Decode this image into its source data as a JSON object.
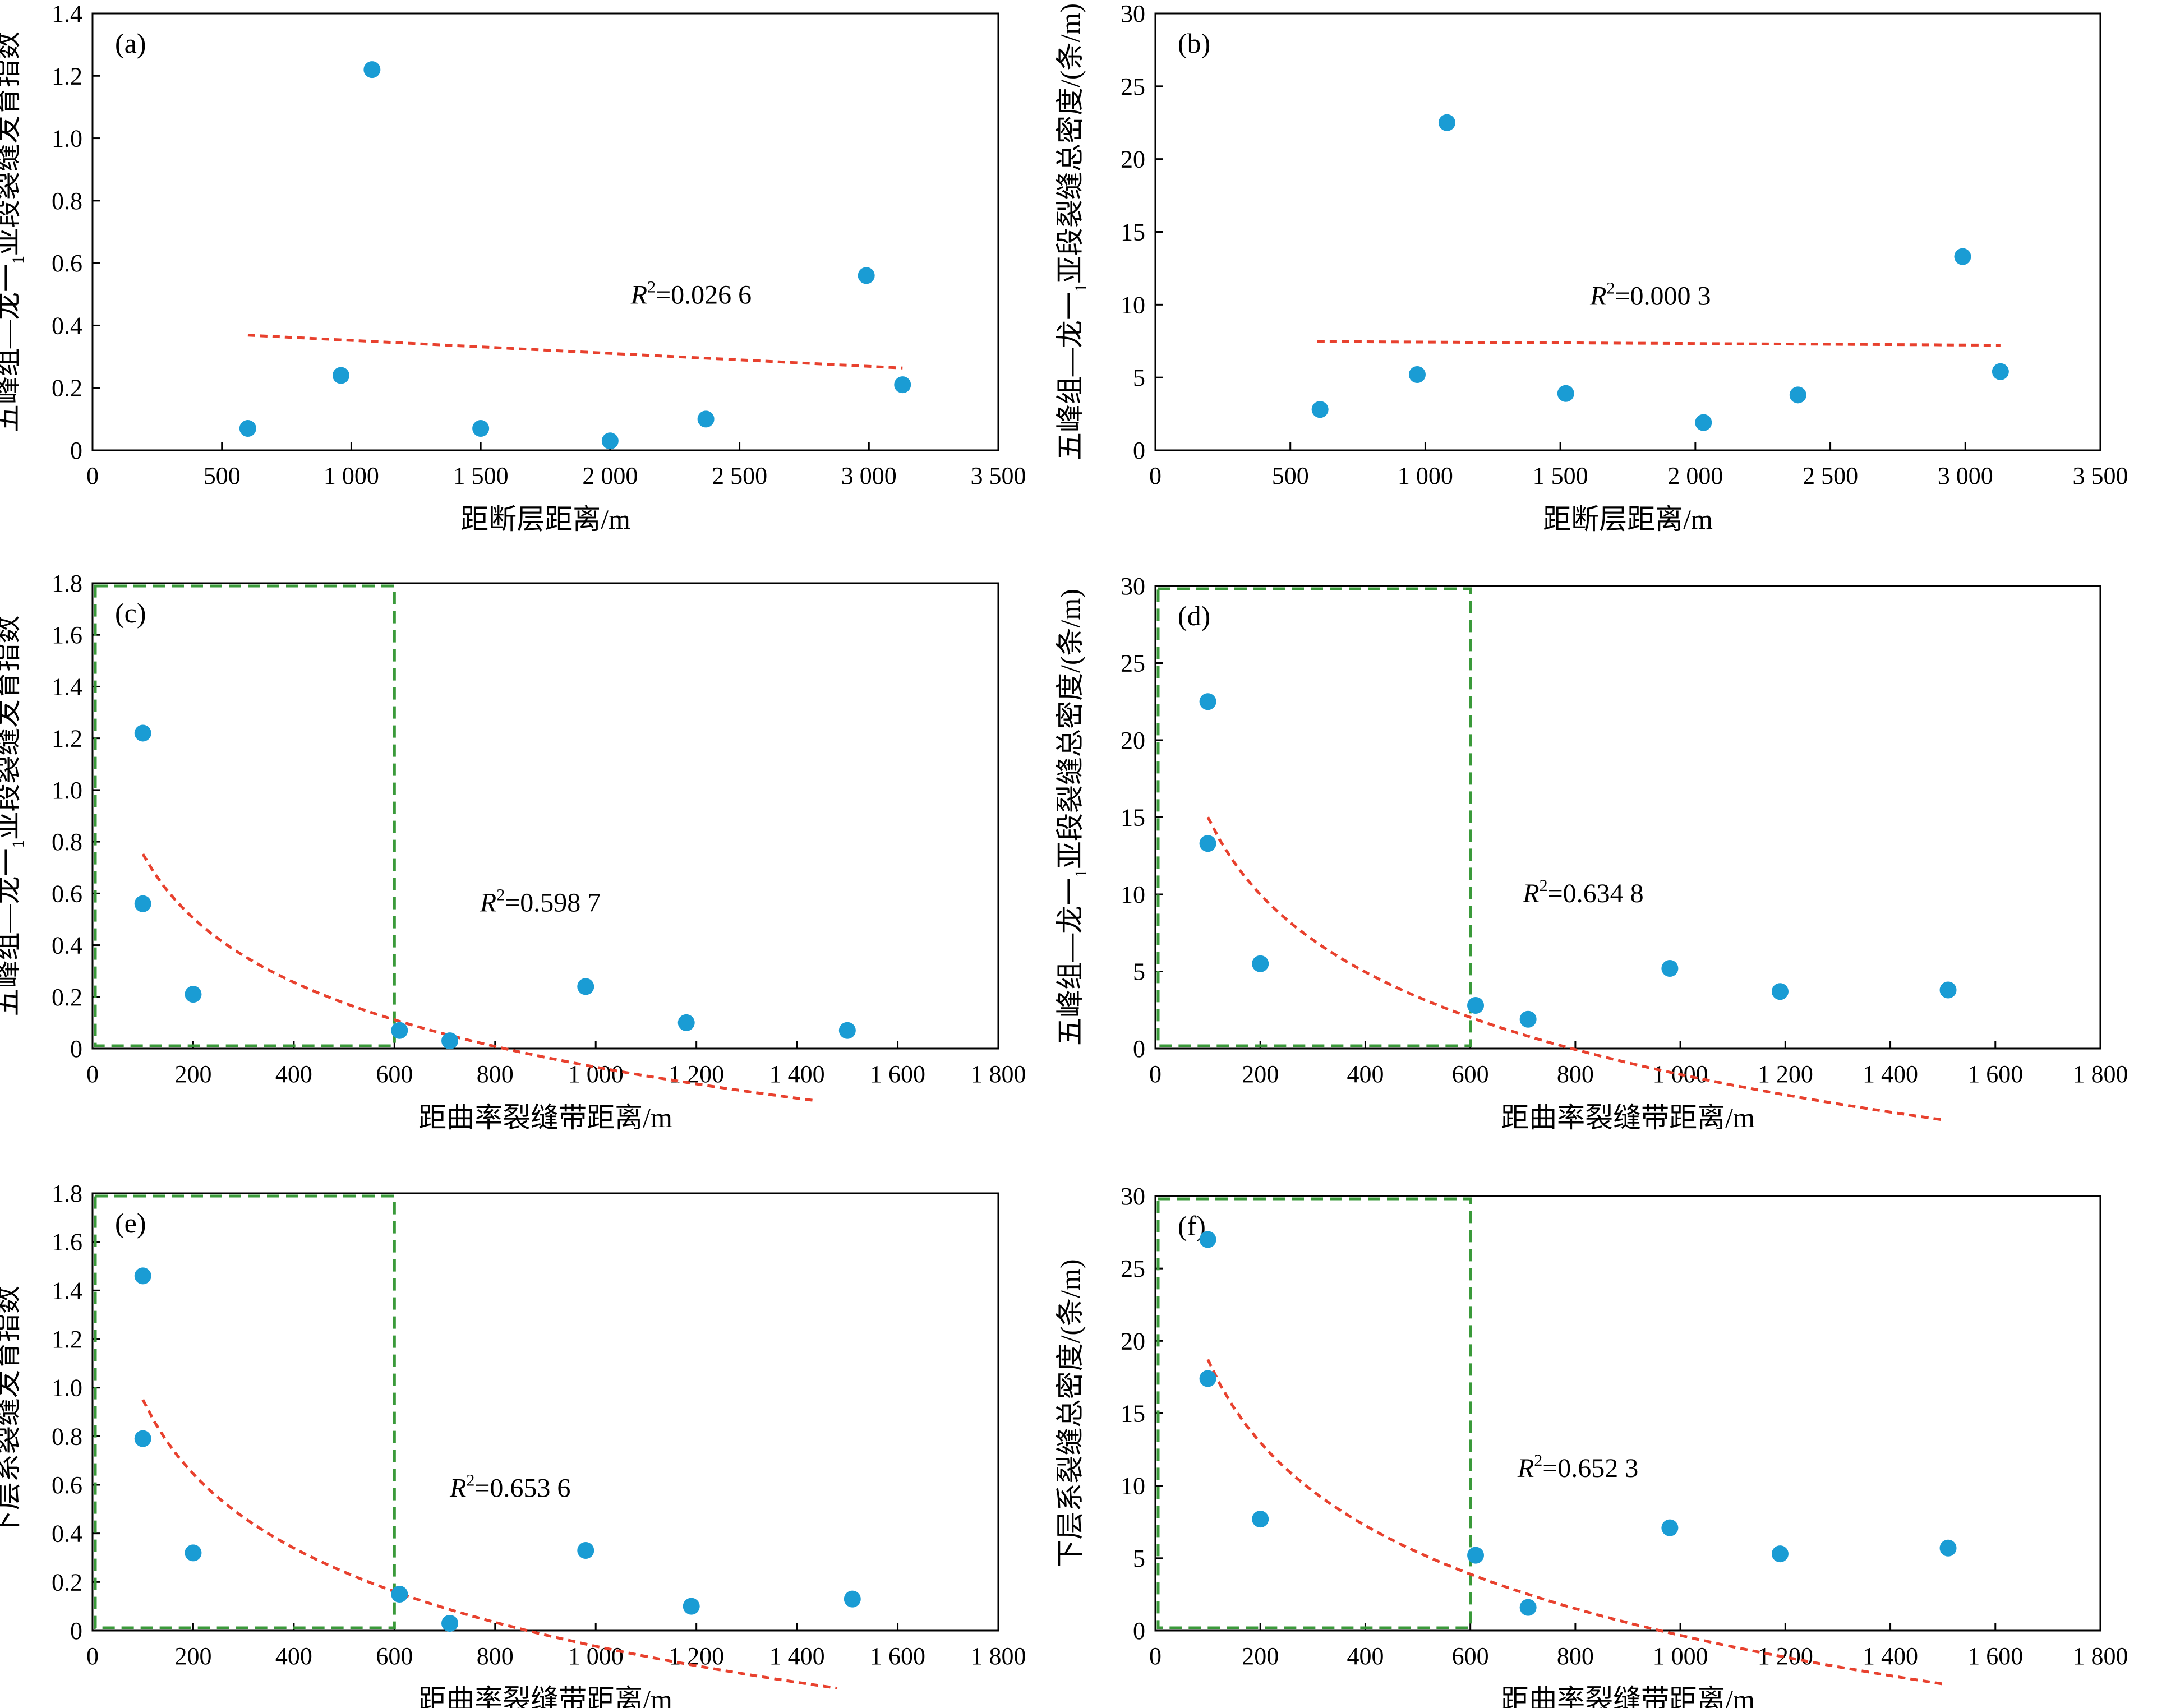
{
  "figure": {
    "colors": {
      "point": "#1a9cd4",
      "trend": "#e8412e",
      "box": "#3a9a3a",
      "axis": "#000000"
    }
  },
  "chart_data": [
    {
      "id": "a",
      "panel_label": "(a)",
      "type": "scatter",
      "xlabel": "距断层距离/m",
      "ylabel_parts": [
        "五峰组—龙一",
        "1",
        "亚段裂缝发育指数"
      ],
      "xlim": [
        0,
        3500
      ],
      "ylim": [
        0,
        1.4
      ],
      "xticks": [
        0,
        500,
        1000,
        1500,
        2000,
        2500,
        3000,
        3500
      ],
      "xtick_labels": [
        "0",
        "500",
        "1 000",
        "1 500",
        "2 000",
        "2 500",
        "3 000",
        "3 500"
      ],
      "yticks": [
        0,
        0.2,
        0.4,
        0.6,
        0.8,
        1.0,
        1.2,
        1.4
      ],
      "ytick_labels": [
        "0",
        "0.2",
        "0.4",
        "0.6",
        "0.8",
        "1.0",
        "1.2",
        "1.4"
      ],
      "points": [
        [
          600,
          0.07
        ],
        [
          960,
          0.24
        ],
        [
          1080,
          1.22
        ],
        [
          1500,
          0.07
        ],
        [
          2000,
          0.03
        ],
        [
          2370,
          0.1
        ],
        [
          2990,
          0.56
        ],
        [
          3130,
          0.21
        ]
      ],
      "trend": {
        "kind": "linear",
        "a": 0.3938,
        "b": -4.16e-05,
        "x_start": 600,
        "x_end": 3130
      },
      "r2_label": "=0.026 6",
      "r2_pos": [
        2080,
        0.47
      ],
      "box": null
    },
    {
      "id": "b",
      "panel_label": "(b)",
      "type": "scatter",
      "xlabel": "距断层距离/m",
      "ylabel_parts": [
        "五峰组—龙一",
        "1",
        "亚段裂缝总密度/(条/m)"
      ],
      "xlim": [
        0,
        3500
      ],
      "ylim": [
        0,
        30
      ],
      "xticks": [
        0,
        500,
        1000,
        1500,
        2000,
        2500,
        3000,
        3500
      ],
      "xtick_labels": [
        "0",
        "500",
        "1 000",
        "1 500",
        "2 000",
        "2 500",
        "3 000",
        "3 500"
      ],
      "yticks": [
        0,
        5,
        10,
        15,
        20,
        25,
        30
      ],
      "ytick_labels": [
        "0",
        "5",
        "10",
        "15",
        "20",
        "25",
        "30"
      ],
      "points": [
        [
          610,
          2.8
        ],
        [
          970,
          5.2
        ],
        [
          1080,
          22.5
        ],
        [
          1520,
          3.9
        ],
        [
          2030,
          1.9
        ],
        [
          2380,
          3.8
        ],
        [
          2990,
          13.3
        ],
        [
          3130,
          5.4
        ]
      ],
      "trend": {
        "kind": "linear",
        "a": 7.53,
        "b": -0.0001,
        "x_start": 600,
        "x_end": 3130
      },
      "r2_label": "=0.000 3",
      "r2_pos": [
        1610,
        10.0
      ],
      "box": null
    },
    {
      "id": "c",
      "panel_label": "(c)",
      "type": "scatter",
      "xlabel": "距曲率裂缝带距离/m",
      "ylabel_parts": [
        "五峰组—龙一",
        "1",
        "亚段裂缝发育指数"
      ],
      "xlim": [
        0,
        1800
      ],
      "ylim": [
        0,
        1.8
      ],
      "xticks": [
        0,
        200,
        400,
        600,
        800,
        1000,
        1200,
        1400,
        1600,
        1800
      ],
      "xtick_labels": [
        "0",
        "200",
        "400",
        "600",
        "800",
        "1 000",
        "1 200",
        "1 400",
        "1 600",
        "1 800"
      ],
      "yticks": [
        0,
        0.2,
        0.4,
        0.6,
        0.8,
        1.0,
        1.2,
        1.4,
        1.6,
        1.8
      ],
      "ytick_labels": [
        "0",
        "0.2",
        "0.4",
        "0.6",
        "0.8",
        "1.0",
        "1.2",
        "1.4",
        "1.6",
        "1.8"
      ],
      "points": [
        [
          100,
          1.22
        ],
        [
          100,
          0.56
        ],
        [
          200,
          0.21
        ],
        [
          610,
          0.07
        ],
        [
          710,
          0.03
        ],
        [
          980,
          0.24
        ],
        [
          1180,
          0.1
        ],
        [
          1500,
          0.07
        ]
      ],
      "trend": {
        "kind": "log",
        "a": 2.4,
        "b": -0.3578,
        "x_start": 100,
        "x_end": 1440
      },
      "r2_label": "=0.598 7",
      "r2_pos": [
        770,
        0.53
      ],
      "box": [
        0,
        600
      ]
    },
    {
      "id": "d",
      "panel_label": "(d)",
      "type": "scatter",
      "xlabel": "距曲率裂缝带距离/m",
      "ylabel_parts": [
        "五峰组—龙一",
        "1",
        "亚段裂缝总密度/(条/m)"
      ],
      "xlim": [
        0,
        1800
      ],
      "ylim": [
        0,
        30
      ],
      "xticks": [
        0,
        200,
        400,
        600,
        800,
        1000,
        1200,
        1400,
        1600,
        1800
      ],
      "xtick_labels": [
        "0",
        "200",
        "400",
        "600",
        "800",
        "1 000",
        "1 200",
        "1 400",
        "1 600",
        "1 800"
      ],
      "yticks": [
        0,
        5,
        10,
        15,
        20,
        25,
        30
      ],
      "ytick_labels": [
        "0",
        "5",
        "10",
        "15",
        "20",
        "25",
        "30"
      ],
      "points": [
        [
          100,
          22.5
        ],
        [
          100,
          13.3
        ],
        [
          200,
          5.5
        ],
        [
          610,
          2.8
        ],
        [
          710,
          1.9
        ],
        [
          980,
          5.2
        ],
        [
          1190,
          3.7
        ],
        [
          1510,
          3.8
        ]
      ],
      "trend": {
        "kind": "log",
        "a": 48.4,
        "b": -7.25,
        "x_start": 100,
        "x_end": 1500
      },
      "r2_label": "=0.634 8",
      "r2_pos": [
        700,
        9.5
      ],
      "box": [
        0,
        600
      ]
    },
    {
      "id": "e",
      "panel_label": "(e)",
      "type": "scatter",
      "xlabel": "距曲率裂缝带距离/m",
      "ylabel_parts": [
        "下层系裂缝发育指数"
      ],
      "xlim": [
        0,
        1800
      ],
      "ylim": [
        0,
        1.8
      ],
      "xticks": [
        0,
        200,
        400,
        600,
        800,
        1000,
        1200,
        1400,
        1600,
        1800
      ],
      "xtick_labels": [
        "0",
        "200",
        "400",
        "600",
        "800",
        "1 000",
        "1 200",
        "1 400",
        "1 600",
        "1 800"
      ],
      "yticks": [
        0,
        0.2,
        0.4,
        0.6,
        0.8,
        1.0,
        1.2,
        1.4,
        1.6,
        1.8
      ],
      "ytick_labels": [
        "0",
        "0.2",
        "0.4",
        "0.6",
        "0.8",
        "1.0",
        "1.2",
        "1.4",
        "1.6",
        "1.8"
      ],
      "points": [
        [
          100,
          1.46
        ],
        [
          100,
          0.79
        ],
        [
          200,
          0.32
        ],
        [
          610,
          0.15
        ],
        [
          710,
          0.03
        ],
        [
          980,
          0.33
        ],
        [
          1190,
          0.1
        ],
        [
          1510,
          0.13
        ]
      ],
      "trend": {
        "kind": "log",
        "a": 2.98,
        "b": -0.4407,
        "x_start": 100,
        "x_end": 1480
      },
      "r2_label": "=0.653 6",
      "r2_pos": [
        710,
        0.55
      ],
      "box": [
        0,
        600
      ]
    },
    {
      "id": "f",
      "panel_label": "(f)",
      "type": "scatter",
      "xlabel": "距曲率裂缝带距离/m",
      "ylabel_parts": [
        "下层系裂缝总密度/(条/m)"
      ],
      "xlim": [
        0,
        1800
      ],
      "ylim": [
        0,
        30
      ],
      "xticks": [
        0,
        200,
        400,
        600,
        800,
        1000,
        1200,
        1400,
        1600,
        1800
      ],
      "xtick_labels": [
        "0",
        "200",
        "400",
        "600",
        "800",
        "1 000",
        "1 200",
        "1 400",
        "1 600",
        "1 800"
      ],
      "yticks": [
        0,
        5,
        10,
        15,
        20,
        25,
        30
      ],
      "ytick_labels": [
        "0",
        "5",
        "10",
        "15",
        "20",
        "25",
        "30"
      ],
      "points": [
        [
          100,
          27.0
        ],
        [
          100,
          17.4
        ],
        [
          200,
          7.7
        ],
        [
          610,
          5.2
        ],
        [
          710,
          1.6
        ],
        [
          980,
          7.1
        ],
        [
          1190,
          5.3
        ],
        [
          1510,
          5.7
        ]
      ],
      "trend": {
        "kind": "log",
        "a": 56.8,
        "b": -8.27,
        "x_start": 100,
        "x_end": 1500
      },
      "r2_label": "=0.652 3",
      "r2_pos": [
        690,
        10.6
      ],
      "box": [
        0,
        600
      ]
    }
  ]
}
